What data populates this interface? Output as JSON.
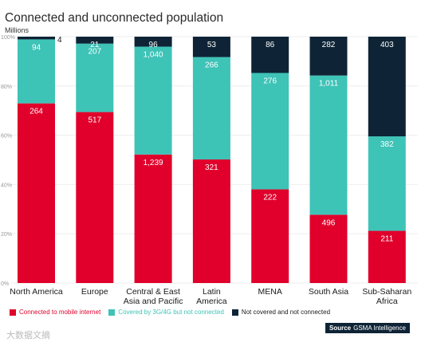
{
  "header": {
    "title": "Connected and unconnected population",
    "unit": "Millions"
  },
  "chart_data": {
    "type": "bar",
    "stacked": true,
    "normalized": true,
    "categories": [
      [
        "North America"
      ],
      [
        "Europe"
      ],
      [
        "Central & East",
        "Asia and Pacific"
      ],
      [
        "Latin",
        "America"
      ],
      [
        "MENA"
      ],
      [
        "South Asia"
      ],
      [
        "Sub-Saharan",
        "Africa"
      ]
    ],
    "series": [
      {
        "name": "Connected to mobile internet",
        "color": "#e0002b",
        "values": [
          264,
          517,
          1239,
          321,
          222,
          496,
          211
        ],
        "labels": [
          "264",
          "517",
          "1,239",
          "321",
          "222",
          "496",
          "211"
        ]
      },
      {
        "name": "Covered by 3G/4G but not connected",
        "color": "#3ec3b7",
        "values": [
          94,
          207,
          1040,
          266,
          276,
          1011,
          382
        ],
        "labels": [
          "94",
          "207",
          "1,040",
          "266",
          "276",
          "1,011",
          "382"
        ]
      },
      {
        "name": "Not covered and not connected",
        "color": "#0e2436",
        "values": [
          4,
          21,
          96,
          53,
          86,
          282,
          403
        ],
        "labels": [
          "4",
          "21",
          "96",
          "53",
          "86",
          "282",
          "403"
        ]
      }
    ],
    "yticks": [
      "0%",
      "20%",
      "40%",
      "60%",
      "80%",
      "100%"
    ],
    "ylim": [
      0,
      100
    ],
    "legend_position": "bottom"
  },
  "source": {
    "label": "Source",
    "text": "GSMA Intelligence"
  },
  "watermark": "大数据文摘"
}
